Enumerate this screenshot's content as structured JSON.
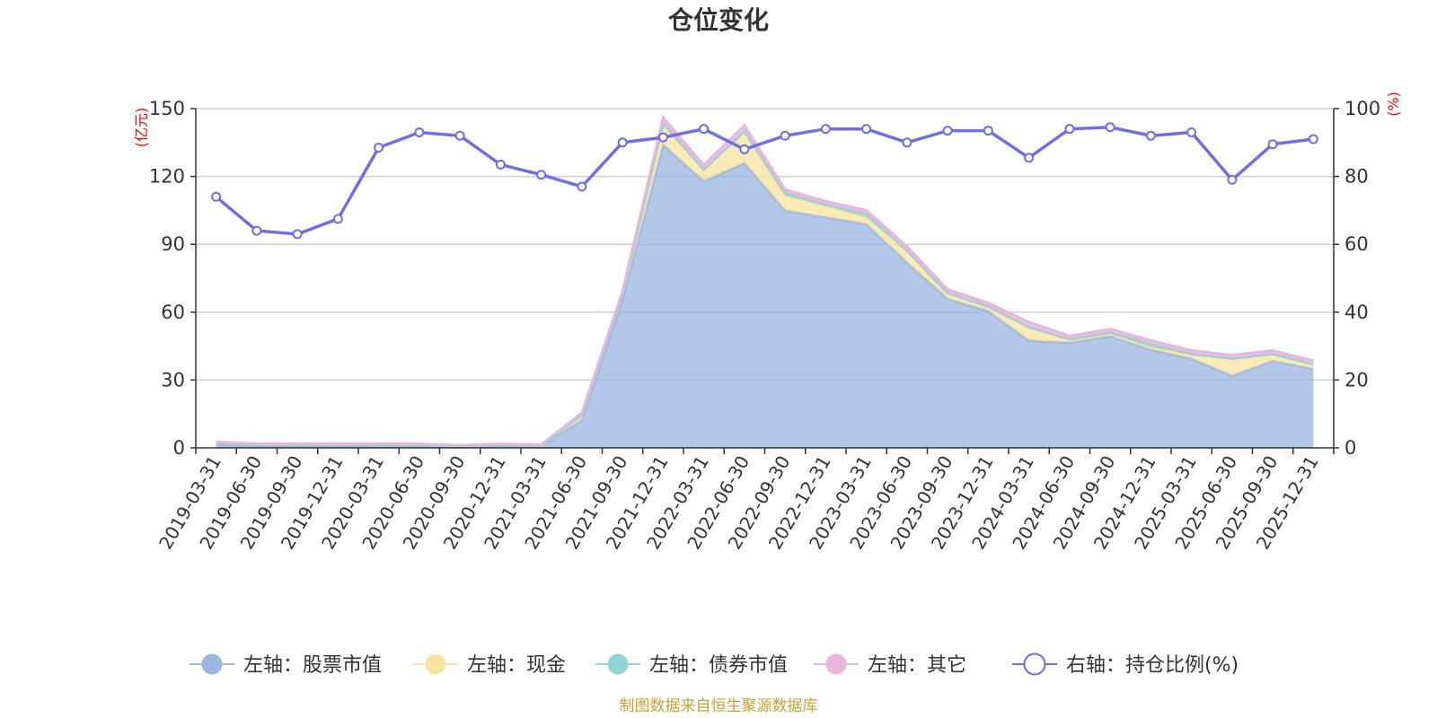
{
  "chart_data": {
    "type": "area",
    "title": "仓位变化",
    "left_axis_unit": "(亿元)",
    "right_axis_unit": "(%)",
    "left_ylim": [
      0,
      150
    ],
    "left_ticks": [
      0,
      30,
      60,
      90,
      120,
      150
    ],
    "right_ylim": [
      0,
      100
    ],
    "right_ticks": [
      0,
      20,
      40,
      60,
      80,
      100
    ],
    "categories": [
      "2019-03-31",
      "2019-06-30",
      "2019-09-30",
      "2019-12-31",
      "2020-03-31",
      "2020-06-30",
      "2020-09-30",
      "2020-12-31",
      "2021-03-31",
      "2021-06-30",
      "2021-09-30",
      "2021-12-31",
      "2022-03-31",
      "2022-06-30",
      "2022-09-30",
      "2022-12-31",
      "2023-03-31",
      "2023-06-30",
      "2023-09-30",
      "2023-12-31",
      "2024-03-31",
      "2024-06-30",
      "2024-09-30",
      "2024-12-31",
      "2025-03-31",
      "2025-06-30",
      "2025-09-30",
      "2025-12-31"
    ],
    "series": [
      {
        "name": "左轴：股票市值",
        "axis": "left",
        "kind": "stacked-area",
        "color": "#9ab6e0",
        "values": [
          1.6,
          0.9,
          0.9,
          1.0,
          0.8,
          0.8,
          0.3,
          1.0,
          0.7,
          12.5,
          66.0,
          134.0,
          118.0,
          126.0,
          105.0,
          102.0,
          99.0,
          82.0,
          66.0,
          60.5,
          47.5,
          46.5,
          49.5,
          43.5,
          39.5,
          32.0,
          38.5,
          35.0
        ]
      },
      {
        "name": "左轴：现金",
        "axis": "left",
        "kind": "stacked-area",
        "color": "#f7e3a0",
        "values": [
          0.5,
          0.5,
          0.5,
          0.5,
          0.5,
          0.5,
          0.4,
          0.3,
          0.3,
          2.0,
          2.0,
          9.5,
          5.0,
          14.0,
          6.5,
          5.0,
          3.0,
          5.0,
          2.5,
          2.0,
          6.0,
          1.5,
          1.0,
          1.0,
          2.0,
          7.5,
          3.0,
          2.0
        ]
      },
      {
        "name": "左轴：债券市值",
        "axis": "left",
        "kind": "stacked-area",
        "color": "#93d4d4",
        "values": [
          0,
          0,
          0,
          0,
          0,
          0,
          0,
          0,
          0,
          0,
          0,
          0,
          0,
          0,
          1.2,
          0.5,
          1.5,
          0.3,
          0,
          0,
          0,
          0,
          0.5,
          1.5,
          0,
          0,
          0,
          0
        ]
      },
      {
        "name": "左轴：其它",
        "axis": "left",
        "kind": "stacked-area",
        "color": "#e6b6dc",
        "values": [
          0.5,
          0.4,
          0.4,
          0.4,
          0.5,
          0.5,
          0.4,
          0.5,
          0.4,
          1.0,
          1.0,
          2.5,
          2.0,
          2.5,
          1.5,
          1.5,
          1.5,
          1.7,
          1.5,
          1.5,
          2.0,
          1.5,
          1.5,
          1.5,
          1.5,
          1.5,
          1.5,
          1.5
        ]
      },
      {
        "name": "右轴：持仓比例(%)",
        "axis": "right",
        "kind": "line",
        "color": "#6e6ee6",
        "values": [
          74.0,
          64.0,
          63.0,
          67.5,
          88.5,
          93.0,
          92.0,
          83.5,
          80.5,
          77.0,
          90.0,
          91.5,
          94.0,
          88.0,
          92.0,
          94.0,
          94.0,
          90.0,
          93.5,
          93.5,
          85.5,
          94.0,
          94.5,
          92.0,
          93.0,
          79.0,
          89.5,
          91.0
        ]
      }
    ],
    "legend_position": "bottom",
    "grid": true,
    "source_text": "制图数据来自恒生聚源数据库"
  }
}
